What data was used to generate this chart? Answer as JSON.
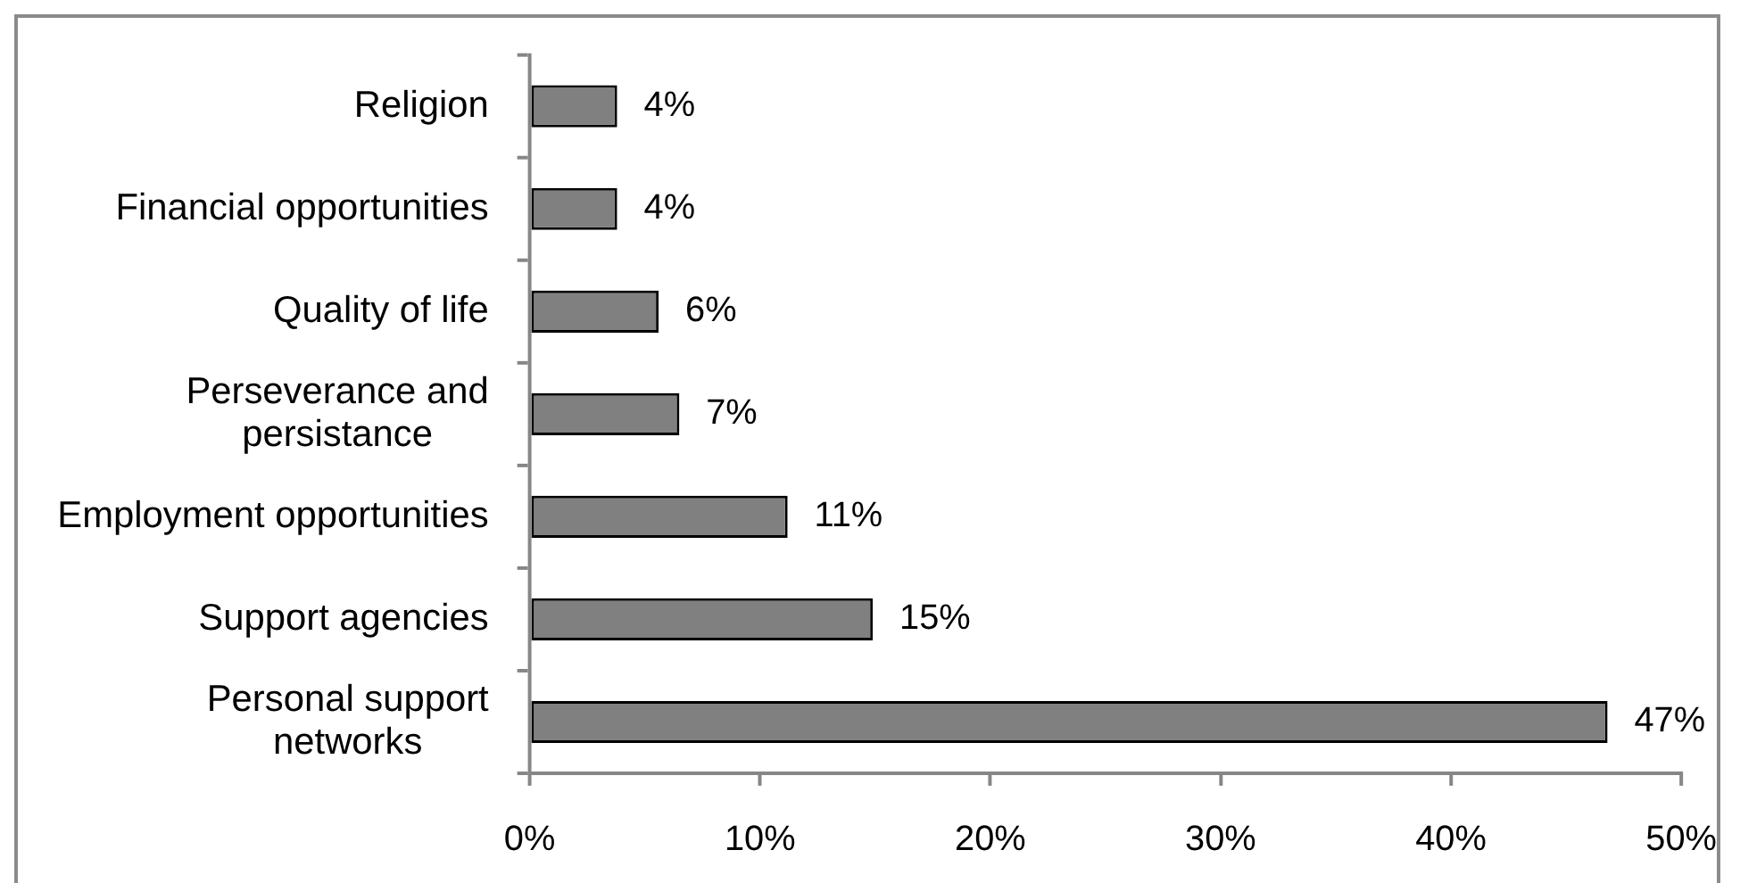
{
  "chart_data": {
    "type": "bar",
    "orientation": "horizontal",
    "categories": [
      "Religion",
      "Financial opportunities",
      "Quality of life",
      "Perseverance and persistance",
      "Employment opportunities",
      "Support agencies",
      "Personal support networks"
    ],
    "values": [
      3.8,
      3.8,
      5.6,
      6.5,
      11.2,
      14.9,
      46.8
    ],
    "value_labels": [
      "4%",
      "4%",
      "6%",
      "7%",
      "11%",
      "15%",
      "47%"
    ],
    "color": "#808080",
    "xlim": [
      0,
      50
    ],
    "xticks": [
      {
        "value": 0,
        "label": "0%"
      },
      {
        "value": 10,
        "label": "10%"
      },
      {
        "value": 20,
        "label": "20%"
      },
      {
        "value": 30,
        "label": "30%"
      },
      {
        "value": 40,
        "label": "40%"
      },
      {
        "value": 50,
        "label": "50%"
      }
    ]
  }
}
